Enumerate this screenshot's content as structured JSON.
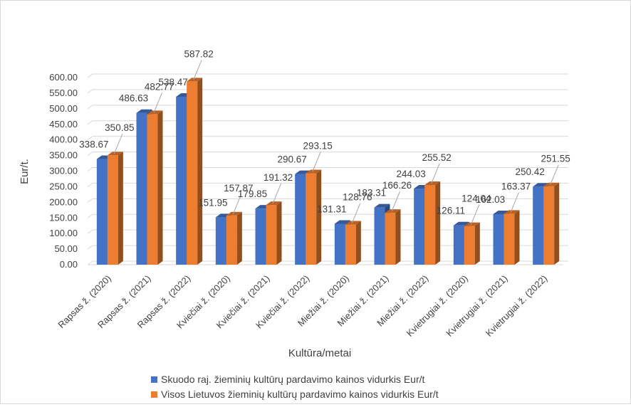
{
  "chart_data": {
    "type": "bar",
    "title": "",
    "xlabel": "Kultūra/metai",
    "ylabel": "Eur/t.",
    "ylim": [
      0,
      600
    ],
    "ytick_step": 50,
    "ytick_labels": [
      "0.00",
      "50.00",
      "100.00",
      "150.00",
      "200.00",
      "250.00",
      "300.00",
      "350.00",
      "400.00",
      "450.00",
      "500.00",
      "550.00",
      "600.00"
    ],
    "grid": true,
    "legend_position": "bottom",
    "categories": [
      "Rapsas ž. (2020)",
      "Rapsas ž. (2021)",
      "Rapsas ž. (2022)",
      "Kviečiai ž. (2020)",
      "Kviečiai ž. (2021)",
      "Kviečiai ž. (2022)",
      "Miežiai ž. (2020)",
      "Miežiai ž. (2021)",
      "Miežiai ž. (2022)",
      "Kvietrugiai ž. (2020)",
      "Kvietrugiai ž. (2021)",
      "Kvietrugiai ž. (2022)"
    ],
    "series": [
      {
        "name": "Skuodo raj. žieminių kultūrų pardavimo kainos vidurkis Eur/t",
        "color": "#4472c4",
        "values": [
          338.67,
          486.63,
          538.47,
          151.95,
          179.85,
          290.67,
          131.31,
          183.31,
          244.03,
          126.11,
          162.03,
          250.42
        ],
        "labels": [
          "338.67",
          "486.63",
          "538.47",
          "151.95",
          "179.85",
          "290.67",
          "131.31",
          "183.31",
          "244.03",
          "126.11",
          "162.03",
          "250.42"
        ]
      },
      {
        "name": "Visos Lietuvos žieminių kultūrų pardavimo kainos vidurkis Eur/t",
        "color": "#ed7d31",
        "values": [
          350.85,
          482.77,
          587.82,
          157.87,
          191.32,
          293.15,
          128.76,
          166.26,
          255.52,
          124.04,
          163.37,
          251.55
        ],
        "labels": [
          "350.85",
          "482.77",
          "587.82",
          "157.87",
          "191.32",
          "293.15",
          "128.76",
          "166.26",
          "255.52",
          "124.04",
          "163.37",
          "251.55"
        ]
      }
    ]
  }
}
